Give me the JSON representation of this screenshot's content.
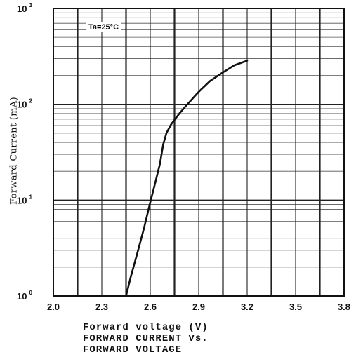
{
  "chart_data": {
    "type": "line",
    "title": "",
    "xlabel": "Forward voltage (V)",
    "ylabel": "Forward Current (mA)",
    "caption_lines": [
      "FORWARD CURRENT Vs.",
      "FORWARD VOLTAGE"
    ],
    "annotation": "Ta=25°C",
    "y_scale": "log",
    "xlim": [
      2.0,
      3.8
    ],
    "ylim": [
      1,
      1000
    ],
    "grid": true,
    "x_ticks": [
      "2.0",
      "2.3",
      "2.6",
      "2.9",
      "3.2",
      "3.5",
      "3.8"
    ],
    "y_ticks": [
      {
        "base": "10",
        "exp": "0"
      },
      {
        "base": "10",
        "exp": "1"
      },
      {
        "base": "10",
        "exp": "2"
      },
      {
        "base": "10",
        "exp": "3"
      }
    ],
    "series": [
      {
        "x": [
          2.45,
          2.48,
          2.52,
          2.56,
          2.6,
          2.63,
          2.66,
          2.68,
          2.7,
          2.73,
          2.78,
          2.83,
          2.9,
          2.97,
          3.05,
          3.12,
          3.2
        ],
        "y": [
          1.0,
          1.6,
          2.8,
          5.0,
          9.5,
          15,
          24,
          38,
          50,
          62,
          80,
          100,
          135,
          175,
          215,
          255,
          285
        ]
      }
    ]
  }
}
